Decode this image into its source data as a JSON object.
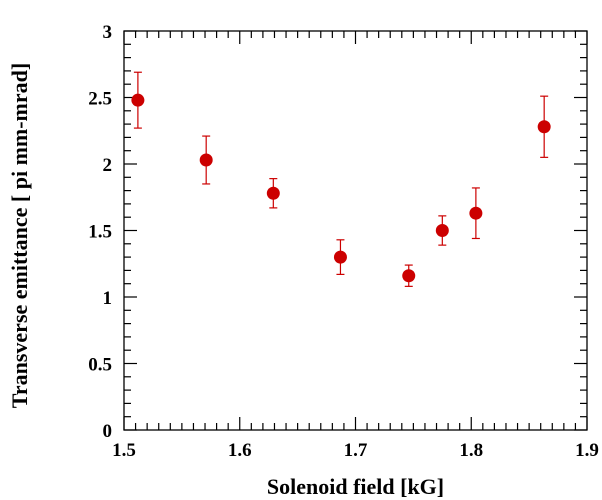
{
  "chart_data": {
    "type": "scatter",
    "title": "",
    "xlabel": "Solenoid field [kG]",
    "ylabel": "Transverse emittance [ pi mm-mrad]",
    "xlim": [
      1.5,
      1.9
    ],
    "ylim": [
      0,
      3
    ],
    "x_ticks": [
      "1.5",
      "1.6",
      "1.7",
      "1.8",
      "1.9"
    ],
    "y_ticks": [
      "0",
      "0.5",
      "1",
      "1.5",
      "2",
      "2.5",
      "3"
    ],
    "grid": false,
    "legend": "none",
    "series": [
      {
        "color": "#cc0000",
        "points": [
          {
            "x": 1.512,
            "y": 2.48,
            "err_low": 0.21,
            "err_high": 0.21
          },
          {
            "x": 1.571,
            "y": 2.03,
            "err_low": 0.18,
            "err_high": 0.18
          },
          {
            "x": 1.629,
            "y": 1.78,
            "err_low": 0.11,
            "err_high": 0.11
          },
          {
            "x": 1.687,
            "y": 1.3,
            "err_low": 0.13,
            "err_high": 0.13
          },
          {
            "x": 1.746,
            "y": 1.16,
            "err_low": 0.08,
            "err_high": 0.08
          },
          {
            "x": 1.775,
            "y": 1.5,
            "err_low": 0.11,
            "err_high": 0.11
          },
          {
            "x": 1.804,
            "y": 1.63,
            "err_low": 0.19,
            "err_high": 0.19
          },
          {
            "x": 1.863,
            "y": 2.28,
            "err_low": 0.23,
            "err_high": 0.23
          }
        ]
      }
    ]
  }
}
